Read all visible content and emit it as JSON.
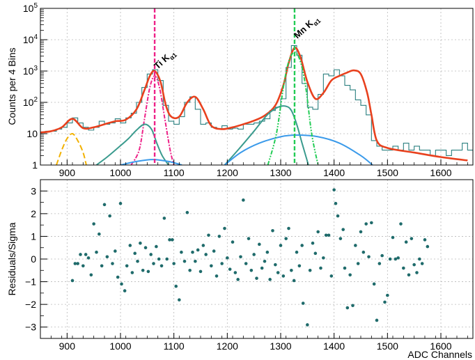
{
  "chart_data": [
    {
      "type": "line",
      "panel": "spectrum-fit",
      "xlim": [
        850,
        1660
      ],
      "ylim": [
        1,
        100000
      ],
      "yscale": "log",
      "grid": true,
      "ylabel": "Counts per 4 Bins",
      "xlabel": "",
      "x_ticks": [
        900,
        1000,
        1100,
        1200,
        1300,
        1400,
        1500,
        1600
      ],
      "y_ticks": [
        {
          "value": 1,
          "label": "1"
        },
        {
          "value": 10,
          "label": "10"
        },
        {
          "value": 100,
          "label": "10^2"
        },
        {
          "value": 1000,
          "label": "10^3"
        },
        {
          "value": 10000,
          "label": "10^4"
        },
        {
          "value": 100000,
          "label": "10^5"
        }
      ],
      "annotations": [
        {
          "text": "Ti K",
          "subscript": "α1",
          "x": 1064
        },
        {
          "text": "Mn K",
          "subscript": "α1",
          "x": 1326
        }
      ],
      "markers": [
        {
          "x": 1064,
          "color": "#ee2288"
        },
        {
          "x": 1326,
          "color": "#22cc55"
        }
      ],
      "series": [
        {
          "kind": "histogram",
          "color": "#2a7f7f",
          "x": [
            850,
            860,
            870,
            880,
            890,
            900,
            910,
            920,
            930,
            940,
            950,
            960,
            970,
            980,
            990,
            1000,
            1010,
            1020,
            1030,
            1040,
            1050,
            1060,
            1070,
            1080,
            1090,
            1100,
            1110,
            1120,
            1130,
            1140,
            1150,
            1160,
            1170,
            1180,
            1190,
            1200,
            1210,
            1220,
            1230,
            1240,
            1250,
            1260,
            1270,
            1280,
            1290,
            1300,
            1310,
            1320,
            1330,
            1340,
            1350,
            1360,
            1370,
            1380,
            1390,
            1400,
            1410,
            1420,
            1430,
            1440,
            1450,
            1460,
            1470,
            1480,
            1490,
            1500,
            1510,
            1520,
            1530,
            1540,
            1550,
            1560,
            1570,
            1580,
            1590,
            1600,
            1610,
            1620,
            1630,
            1640,
            1650
          ],
          "y": [
            11,
            12,
            12,
            14,
            16,
            22,
            32,
            22,
            16,
            13,
            16,
            25,
            20,
            22,
            30,
            22,
            32,
            45,
            100,
            300,
            800,
            1100,
            500,
            80,
            25,
            20,
            35,
            100,
            150,
            60,
            20,
            22,
            16,
            14,
            18,
            14,
            15,
            14,
            20,
            20,
            22,
            25,
            30,
            55,
            70,
            130,
            1300,
            6500,
            3200,
            400,
            70,
            60,
            180,
            800,
            700,
            1100,
            700,
            350,
            250,
            120,
            80,
            40,
            6,
            4,
            3,
            3,
            4,
            3,
            5,
            3,
            4,
            3,
            3,
            2,
            3,
            3,
            2,
            3,
            3,
            5,
            3
          ]
        },
        {
          "kind": "curve",
          "name": "total-fit",
          "color": "#e8411e",
          "x": [
            850,
            870,
            890,
            910,
            930,
            950,
            970,
            990,
            1010,
            1030,
            1045,
            1055,
            1064,
            1075,
            1085,
            1095,
            1110,
            1125,
            1140,
            1155,
            1170,
            1190,
            1210,
            1230,
            1250,
            1270,
            1290,
            1305,
            1315,
            1326,
            1337,
            1350,
            1365,
            1380,
            1395,
            1410,
            1425,
            1437,
            1450,
            1462,
            1470,
            1480,
            1500,
            1550,
            1600,
            1650
          ],
          "y": [
            11,
            12,
            16,
            30,
            15,
            16,
            20,
            25,
            28,
            60,
            250,
            700,
            1000,
            450,
            80,
            35,
            35,
            100,
            150,
            60,
            18,
            14,
            16,
            20,
            26,
            38,
            80,
            350,
            1800,
            5500,
            2800,
            450,
            130,
            200,
            500,
            700,
            900,
            1050,
            800,
            200,
            40,
            6,
            3.5,
            2.5,
            1.8,
            1.4
          ]
        },
        {
          "kind": "curve",
          "name": "yellow-gaussian",
          "color": "#f2b100",
          "x": [
            880,
            890,
            900,
            910,
            920,
            930,
            936
          ],
          "y": [
            1,
            3,
            7,
            10,
            6,
            2.5,
            1
          ]
        },
        {
          "kind": "curve",
          "name": "ti-k-alpha1",
          "color": "#ee2288",
          "x": [
            1020,
            1035,
            1045,
            1055,
            1064,
            1073,
            1083,
            1093,
            1100
          ],
          "y": [
            1,
            3,
            30,
            300,
            700,
            300,
            30,
            3,
            1
          ]
        },
        {
          "kind": "curve",
          "name": "teal-left",
          "color": "#3a9b8e",
          "x": [
            955,
            975,
            995,
            1015,
            1030,
            1045,
            1058,
            1068,
            1078,
            1090
          ],
          "y": [
            1,
            1.8,
            3.5,
            7,
            13,
            20,
            14,
            5,
            2,
            1
          ]
        },
        {
          "kind": "curve",
          "name": "blue-left",
          "color": "#3a9aea",
          "x": [
            1000,
            1030,
            1060,
            1090,
            1115
          ],
          "y": [
            1,
            1.3,
            1.5,
            1.3,
            1
          ]
        },
        {
          "kind": "curve",
          "name": "teal-right",
          "color": "#3a9b8e",
          "x": [
            1195,
            1220,
            1250,
            1275,
            1295,
            1310,
            1320,
            1330,
            1340,
            1352
          ],
          "y": [
            1,
            3,
            12,
            40,
            70,
            75,
            55,
            20,
            5,
            1
          ]
        },
        {
          "kind": "curve",
          "name": "blue-right",
          "color": "#3a9aea",
          "x": [
            1195,
            1225,
            1260,
            1300,
            1330,
            1370,
            1410,
            1450,
            1472
          ],
          "y": [
            1,
            2.5,
            5,
            8,
            9,
            8,
            5,
            2,
            1
          ]
        },
        {
          "kind": "curve",
          "name": "mn-k-alpha1",
          "color": "#22cc55",
          "x": [
            1276,
            1292,
            1305,
            1315,
            1326,
            1337,
            1347,
            1358,
            1370
          ],
          "y": [
            1,
            10,
            300,
            2000,
            4000,
            2000,
            300,
            10,
            1
          ]
        }
      ]
    },
    {
      "type": "scatter",
      "panel": "residuals",
      "xlim": [
        850,
        1660
      ],
      "ylim": [
        -3.5,
        3.5
      ],
      "grid": true,
      "xlabel": "ADC Channels",
      "ylabel": "Residuals/Sigma",
      "x_ticks": [
        900,
        1000,
        1100,
        1200,
        1300,
        1400,
        1500,
        1600
      ],
      "y_ticks": [
        -3,
        -2,
        -1,
        0,
        1,
        2,
        3
      ],
      "color": "#1f6b6b",
      "points": [
        [
          910,
          -0.95
        ],
        [
          915,
          -0.2
        ],
        [
          920,
          -0.2
        ],
        [
          925,
          0.2
        ],
        [
          930,
          -0.3
        ],
        [
          935,
          0.2
        ],
        [
          940,
          0.05
        ],
        [
          945,
          -0.7
        ],
        [
          950,
          1.55
        ],
        [
          955,
          0.3
        ],
        [
          960,
          1.1
        ],
        [
          965,
          -0.3
        ],
        [
          970,
          2.4
        ],
        [
          975,
          0.1
        ],
        [
          980,
          1.9
        ],
        [
          985,
          -0.2
        ],
        [
          990,
          0.35
        ],
        [
          995,
          -0.8
        ],
        [
          1000,
          2.45
        ],
        [
          1002,
          -1.1
        ],
        [
          1008,
          -1.4
        ],
        [
          1012,
          -0.3
        ],
        [
          1018,
          0.6
        ],
        [
          1022,
          -0.6
        ],
        [
          1027,
          0.25
        ],
        [
          1032,
          -0.1
        ],
        [
          1037,
          0.7
        ],
        [
          1042,
          -0.5
        ],
        [
          1047,
          0.5
        ],
        [
          1052,
          -0.55
        ],
        [
          1057,
          0.2
        ],
        [
          1062,
          -0.2
        ],
        [
          1067,
          0.55
        ],
        [
          1072,
          0.0
        ],
        [
          1077,
          -0.3
        ],
        [
          1082,
          1.8
        ],
        [
          1087,
          0.0
        ],
        [
          1092,
          0.85
        ],
        [
          1097,
          0.85
        ],
        [
          1100,
          -0.2
        ],
        [
          1104,
          -1.2
        ],
        [
          1110,
          -1.8
        ],
        [
          1114,
          0.3
        ],
        [
          1120,
          -0.1
        ],
        [
          1125,
          2.05
        ],
        [
          1130,
          -0.5
        ],
        [
          1135,
          0.3
        ],
        [
          1140,
          -0.1
        ],
        [
          1145,
          0.4
        ],
        [
          1150,
          -0.55
        ],
        [
          1155,
          0.6
        ],
        [
          1160,
          0.2
        ],
        [
          1165,
          1.05
        ],
        [
          1170,
          -0.3
        ],
        [
          1175,
          0.35
        ],
        [
          1180,
          -0.75
        ],
        [
          1185,
          1.0
        ],
        [
          1190,
          -0.2
        ],
        [
          1195,
          1.35
        ],
        [
          1200,
          0.05
        ],
        [
          1205,
          -0.45
        ],
        [
          1210,
          0.75
        ],
        [
          1215,
          -0.6
        ],
        [
          1220,
          -0.9
        ],
        [
          1225,
          0.1
        ],
        [
          1230,
          2.6
        ],
        [
          1235,
          -0.2
        ],
        [
          1240,
          0.9
        ],
        [
          1245,
          -0.5
        ],
        [
          1250,
          0.2
        ],
        [
          1255,
          -0.85
        ],
        [
          1260,
          0.65
        ],
        [
          1265,
          -0.4
        ],
        [
          1270,
          -0.1
        ],
        [
          1275,
          0.3
        ],
        [
          1280,
          -0.9
        ],
        [
          1285,
          1.25
        ],
        [
          1290,
          -0.25
        ],
        [
          1295,
          -0.6
        ],
        [
          1300,
          0.6
        ],
        [
          1305,
          -0.75
        ],
        [
          1310,
          0.9
        ],
        [
          1315,
          1.35
        ],
        [
          1320,
          -0.5
        ],
        [
          1325,
          -0.95
        ],
        [
          1330,
          0.3
        ],
        [
          1335,
          -0.3
        ],
        [
          1340,
          0.6
        ],
        [
          1342,
          -1.95
        ],
        [
          1350,
          -2.9
        ],
        [
          1355,
          -0.5
        ],
        [
          1360,
          0.7
        ],
        [
          1365,
          0.25
        ],
        [
          1370,
          1.2
        ],
        [
          1375,
          -0.4
        ],
        [
          1380,
          0.05
        ],
        [
          1385,
          1.05
        ],
        [
          1390,
          1.05
        ],
        [
          1395,
          -0.75
        ],
        [
          1400,
          3.05
        ],
        [
          1403,
          2.45
        ],
        [
          1407,
          1.9
        ],
        [
          1412,
          0.9
        ],
        [
          1417,
          1.3
        ],
        [
          1420,
          -0.4
        ],
        [
          1425,
          -2.15
        ],
        [
          1430,
          -0.7
        ],
        [
          1435,
          -2.05
        ],
        [
          1440,
          0.6
        ],
        [
          1445,
          -0.2
        ],
        [
          1450,
          1.2
        ],
        [
          1455,
          0.3
        ],
        [
          1460,
          1.55
        ],
        [
          1465,
          0.1
        ],
        [
          1470,
          1.6
        ],
        [
          1475,
          -1.1
        ],
        [
          1480,
          -2.7
        ],
        [
          1485,
          -0.2
        ],
        [
          1490,
          0.15
        ],
        [
          1495,
          -1.9
        ],
        [
          1500,
          -1.6
        ],
        [
          1505,
          0.0
        ],
        [
          1510,
          0.95
        ],
        [
          1515,
          0.0
        ],
        [
          1520,
          0.05
        ],
        [
          1525,
          1.55
        ],
        [
          1530,
          -0.4
        ],
        [
          1535,
          0.75
        ],
        [
          1540,
          -0.7
        ],
        [
          1545,
          0.9
        ],
        [
          1550,
          -0.25
        ],
        [
          1555,
          -0.6
        ],
        [
          1560,
          0.0
        ],
        [
          1565,
          -0.2
        ],
        [
          1570,
          0.85
        ],
        [
          1575,
          0.55
        ]
      ]
    }
  ]
}
